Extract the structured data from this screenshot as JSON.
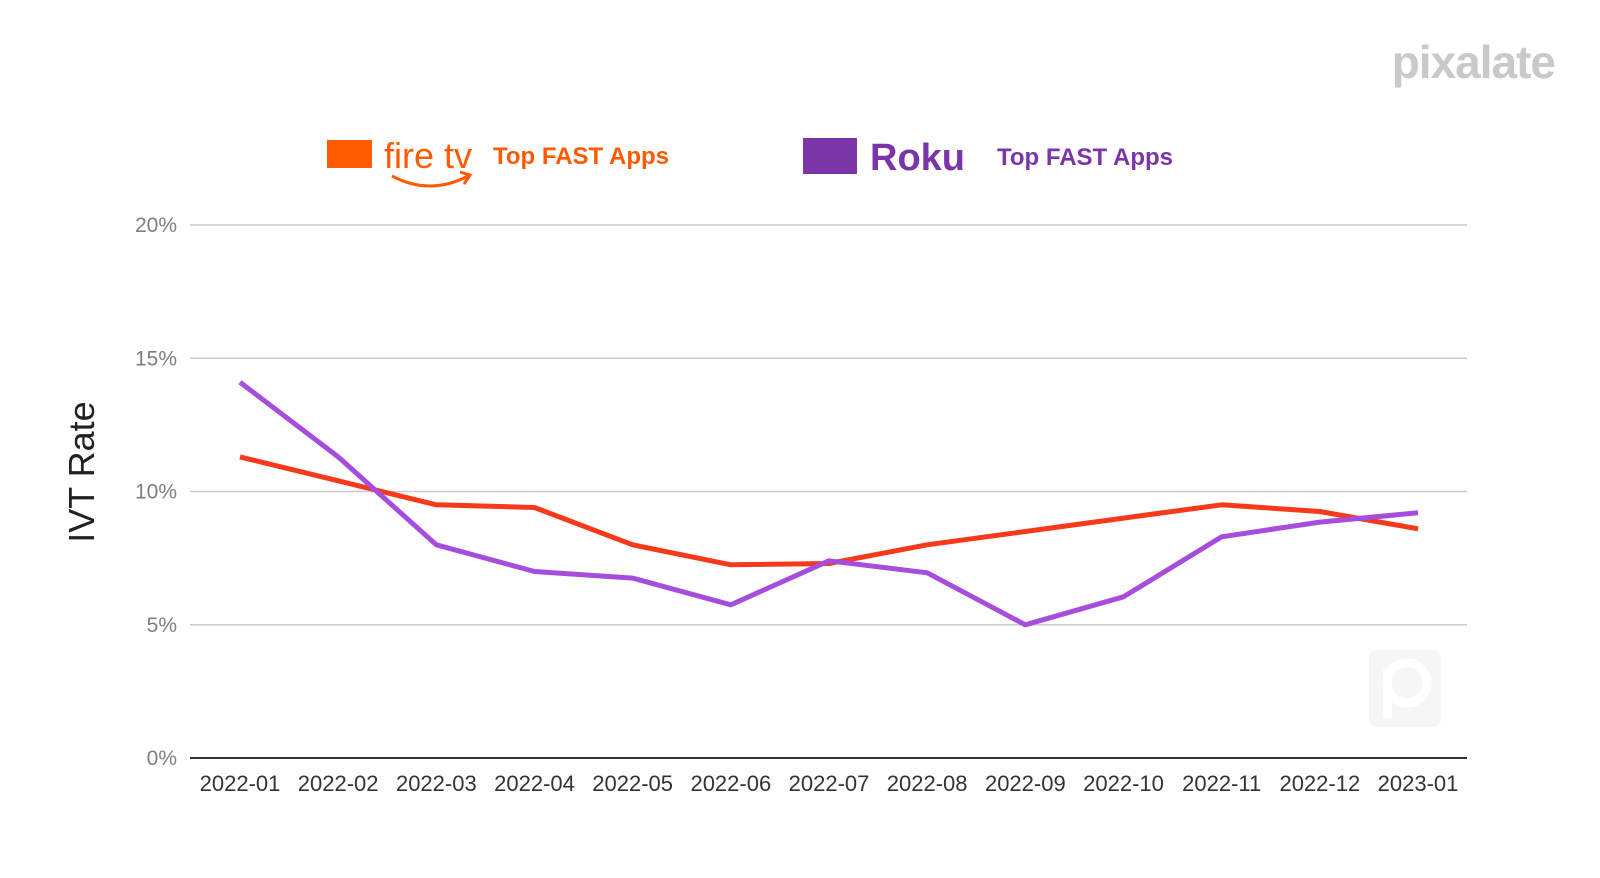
{
  "logo": {
    "text": "pixalate"
  },
  "legend": [
    {
      "brand": "fire tv",
      "label": "Top FAST Apps",
      "color": "#ff5a00",
      "icon": "amazon-smile-icon"
    },
    {
      "brand": "Roku",
      "label": "Top FAST Apps",
      "color": "#7b35a8"
    }
  ],
  "watermark": {
    "icon": "pixalate-p-icon"
  },
  "chart_data": {
    "type": "line",
    "title": "",
    "xlabel": "",
    "ylabel": "IVT Rate",
    "ylim": [
      0,
      20
    ],
    "ytick_labels": [
      "0%",
      "5%",
      "10%",
      "15%",
      "20%"
    ],
    "ytick_values": [
      0,
      5,
      10,
      15,
      20
    ],
    "grid": true,
    "legend_position": "top",
    "categories": [
      "2022-01",
      "2022-02",
      "2022-03",
      "2022-04",
      "2022-05",
      "2022-06",
      "2022-07",
      "2022-08",
      "2022-09",
      "2022-10",
      "2022-11",
      "2022-12",
      "2023-01"
    ],
    "series": [
      {
        "name": "fire tv Top FAST Apps",
        "color": "#f5391a",
        "values": [
          11.3,
          10.4,
          9.5,
          9.4,
          8.0,
          7.25,
          7.3,
          8.0,
          8.5,
          9.0,
          9.5,
          9.25,
          8.6
        ]
      },
      {
        "name": "Roku Top FAST Apps",
        "color": "#a64dde",
        "values": [
          14.1,
          11.3,
          8.0,
          7.0,
          6.75,
          5.75,
          7.4,
          6.95,
          5.0,
          6.05,
          8.3,
          8.85,
          9.2
        ]
      }
    ]
  }
}
